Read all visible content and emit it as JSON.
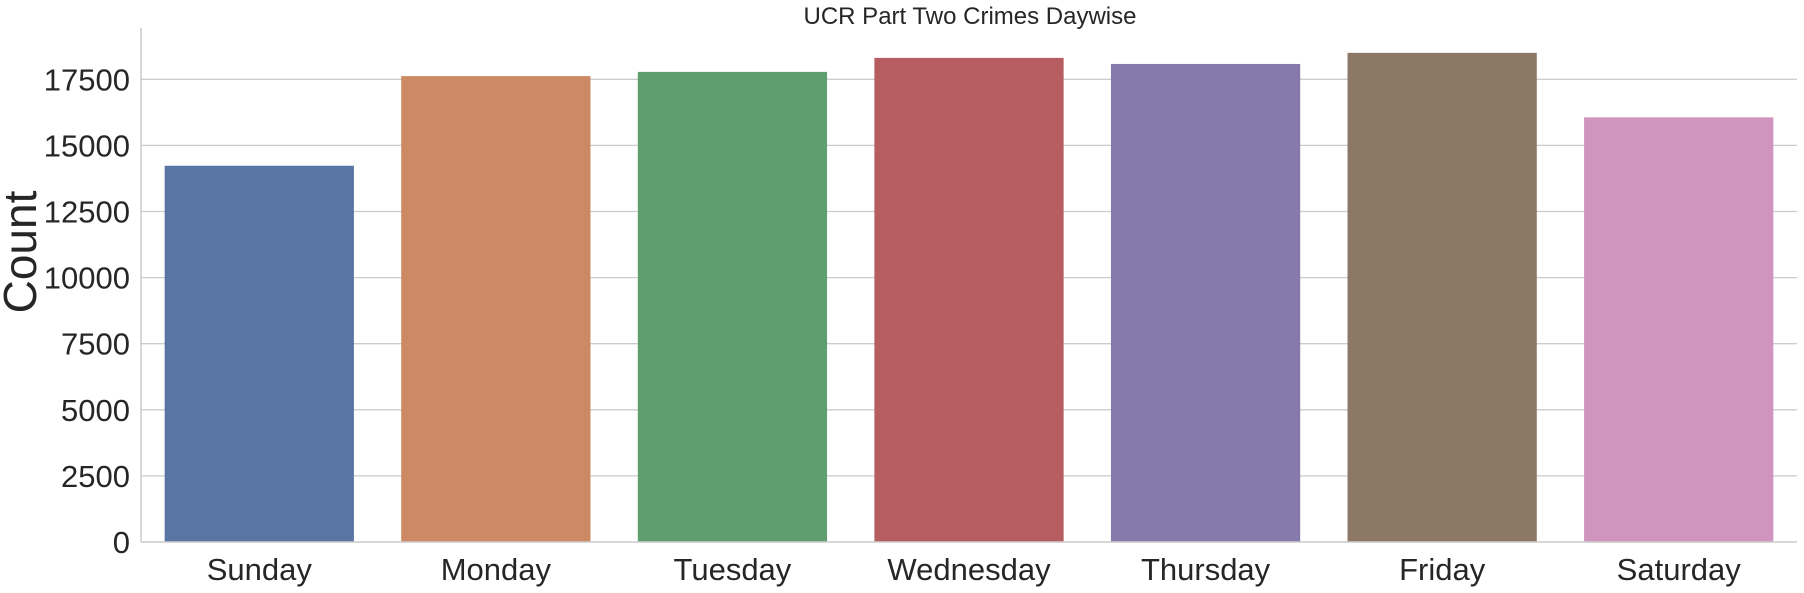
{
  "chart_data": {
    "type": "bar",
    "title": "UCR Part Two Crimes Daywise",
    "xlabel": "",
    "ylabel": "Count",
    "categories": [
      "Sunday",
      "Monday",
      "Tuesday",
      "Wednesday",
      "Thursday",
      "Friday",
      "Saturday"
    ],
    "values": [
      14230,
      17620,
      17780,
      18310,
      18080,
      18500,
      16060
    ],
    "colors": [
      "#5975a4",
      "#cc8963",
      "#5f9e6e",
      "#b55d60",
      "#857aab",
      "#8d7866",
      "#d095bf"
    ],
    "yticks": [
      0,
      2500,
      5000,
      7500,
      10000,
      12500,
      15000,
      17500
    ],
    "ytick_labels": [
      "0",
      "2500",
      "5000",
      "7500",
      "10000",
      "12500",
      "15000",
      "17500"
    ],
    "ylim": [
      0,
      19440
    ],
    "grid": "horizontal",
    "legend": "none"
  }
}
